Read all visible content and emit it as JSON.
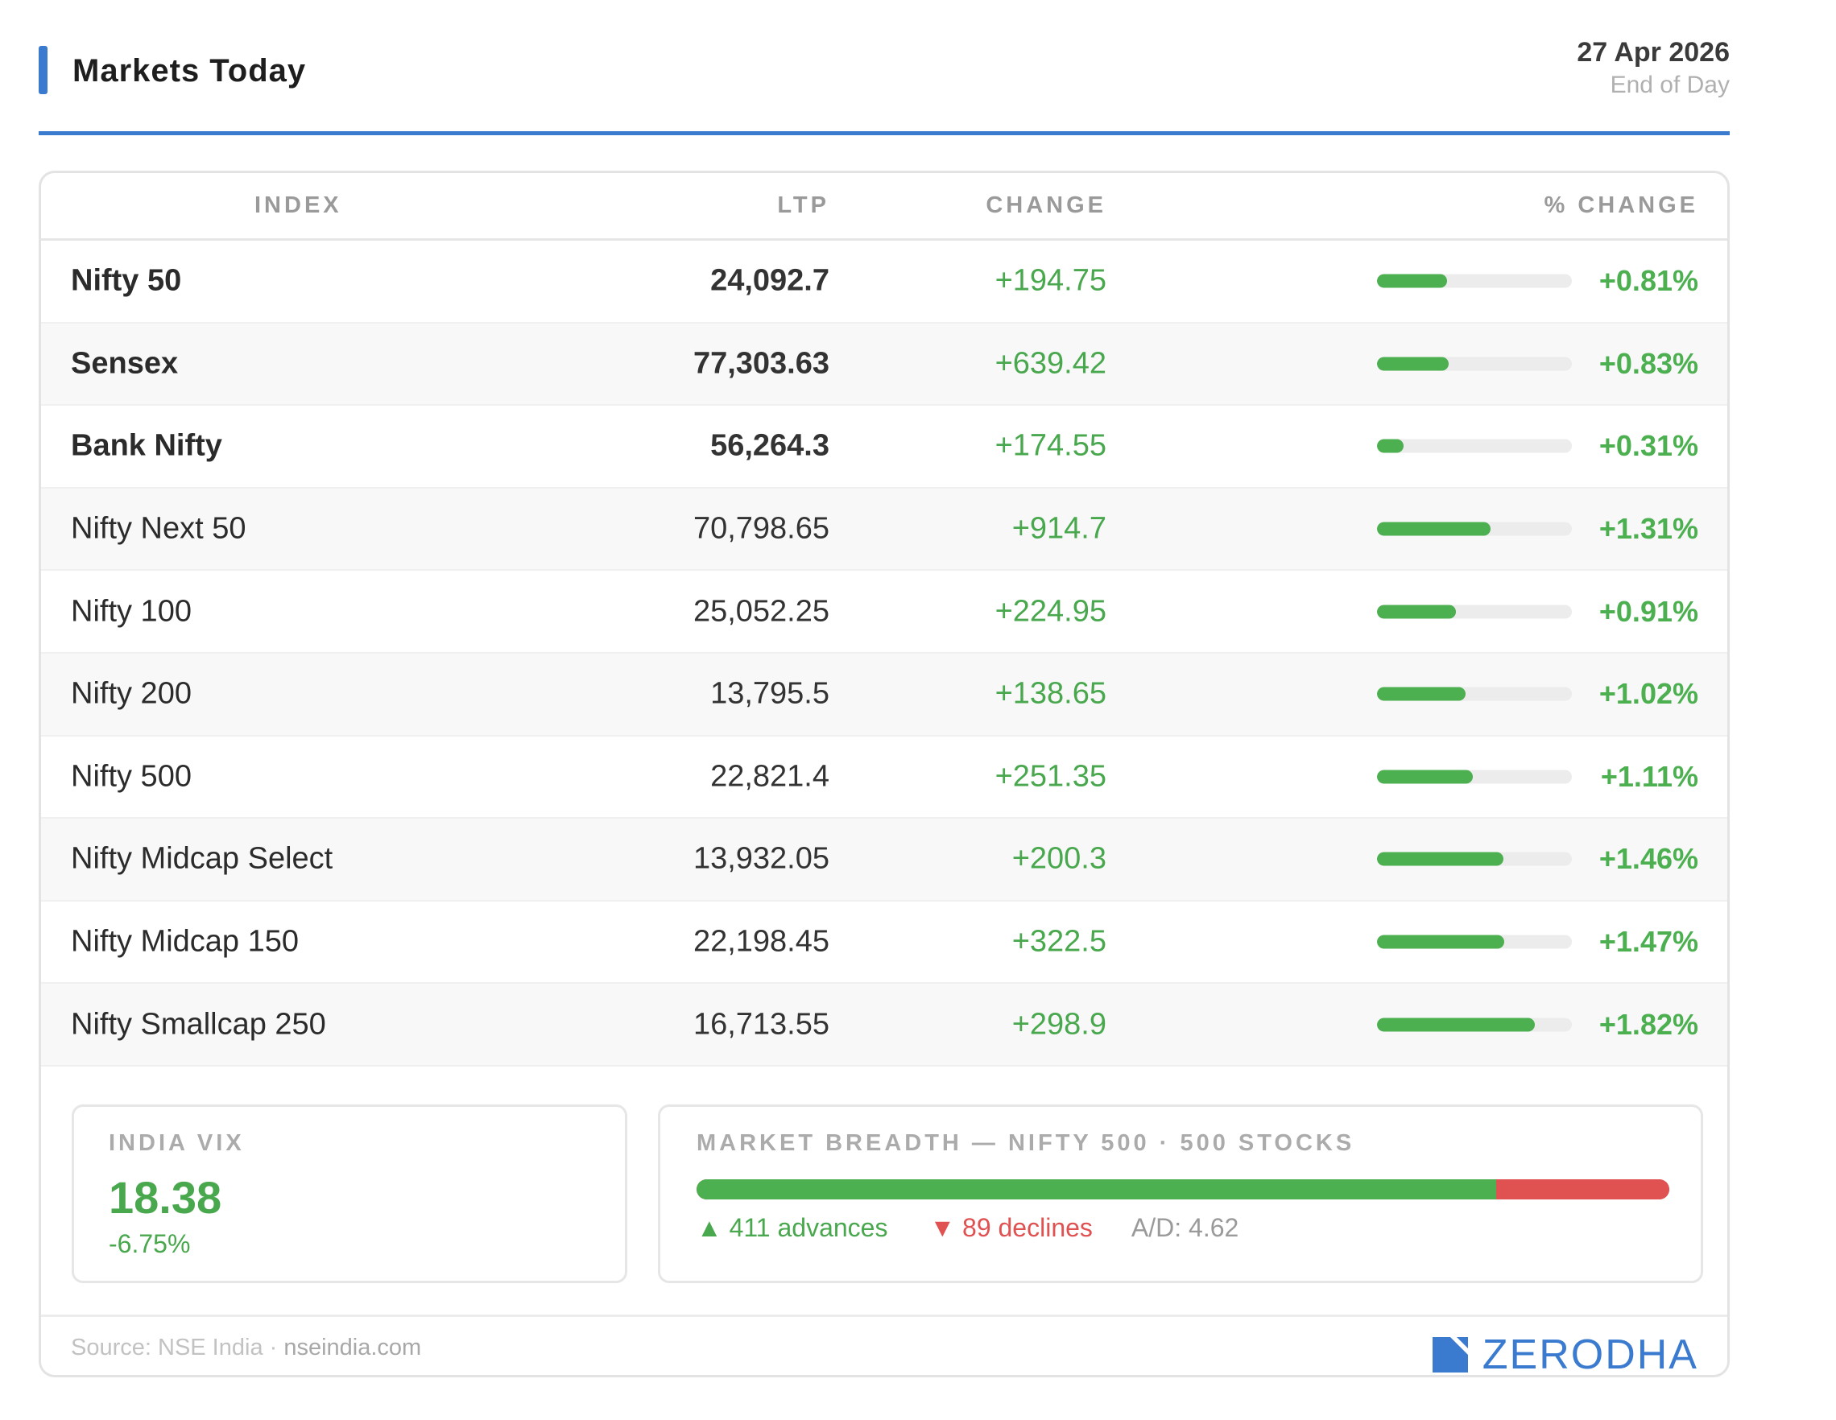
{
  "header": {
    "title": "Markets Today",
    "date": "27 Apr 2026",
    "subtitle": "End of Day"
  },
  "table": {
    "columns": {
      "index": "INDEX",
      "ltp": "LTP",
      "change": "CHANGE",
      "pct_change": "% CHANGE"
    },
    "rows": [
      {
        "name": "Nifty 50",
        "ltp": "24,092.7",
        "change": "+194.75",
        "pct": "+0.81%",
        "pct_value": 0.81,
        "major": true
      },
      {
        "name": "Sensex",
        "ltp": "77,303.63",
        "change": "+639.42",
        "pct": "+0.83%",
        "pct_value": 0.83,
        "major": true
      },
      {
        "name": "Bank Nifty",
        "ltp": "56,264.3",
        "change": "+174.55",
        "pct": "+0.31%",
        "pct_value": 0.31,
        "major": true
      },
      {
        "name": "Nifty Next 50",
        "ltp": "70,798.65",
        "change": "+914.7",
        "pct": "+1.31%",
        "pct_value": 1.31,
        "major": false
      },
      {
        "name": "Nifty 100",
        "ltp": "25,052.25",
        "change": "+224.95",
        "pct": "+0.91%",
        "pct_value": 0.91,
        "major": false
      },
      {
        "name": "Nifty 200",
        "ltp": "13,795.5",
        "change": "+138.65",
        "pct": "+1.02%",
        "pct_value": 1.02,
        "major": false
      },
      {
        "name": "Nifty 500",
        "ltp": "22,821.4",
        "change": "+251.35",
        "pct": "+1.11%",
        "pct_value": 1.11,
        "major": false
      },
      {
        "name": "Nifty Midcap Select",
        "ltp": "13,932.05",
        "change": "+200.3",
        "pct": "+1.46%",
        "pct_value": 1.46,
        "major": false
      },
      {
        "name": "Nifty Midcap 150",
        "ltp": "22,198.45",
        "change": "+322.5",
        "pct": "+1.47%",
        "pct_value": 1.47,
        "major": false
      },
      {
        "name": "Nifty Smallcap 250",
        "ltp": "16,713.55",
        "change": "+298.9",
        "pct": "+1.82%",
        "pct_value": 1.82,
        "major": false
      }
    ]
  },
  "vix": {
    "label": "INDIA VIX",
    "value": "18.38",
    "change": "-6.75%"
  },
  "breadth": {
    "label": "MARKET BREADTH — NIFTY 500 · 500 STOCKS",
    "advances": 411,
    "declines": 89,
    "advances_text": "▲ 411 advances",
    "declines_text": "▼ 89 declines",
    "ad_ratio_text": "A/D: 4.62"
  },
  "footer": {
    "source_prefix": "Source: NSE India · ",
    "source_site": "nseindia.com",
    "brand": "ZERODHA",
    "brand_icon": "zerodha-logo-icon"
  },
  "colors": {
    "accent": "#3a7bd0",
    "positive": "#4caf50",
    "negative": "#e05252"
  }
}
